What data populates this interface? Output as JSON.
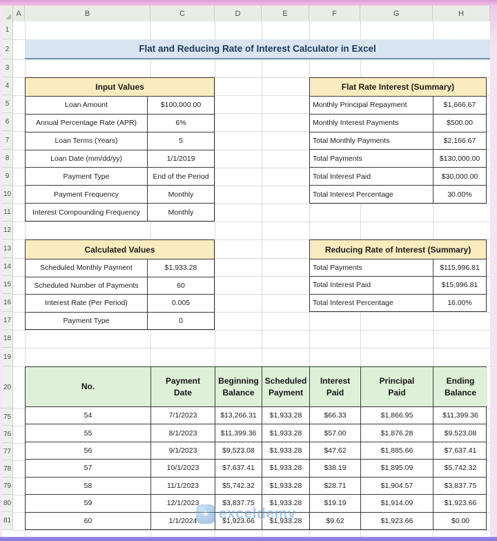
{
  "spreadsheet": {
    "column_headers": [
      "A",
      "B",
      "C",
      "D",
      "E",
      "F",
      "G",
      "H"
    ],
    "row_numbers": [
      "1",
      "2",
      "3",
      "4",
      "5",
      "6",
      "7",
      "8",
      "9",
      "10",
      "11",
      "12",
      "13",
      "14",
      "15",
      "16",
      "17",
      "18",
      "19",
      "20",
      "75",
      "76",
      "77",
      "78",
      "79",
      "80",
      "81"
    ],
    "title": "Flat and Reducing Rate of Interest Calculator in Excel"
  },
  "input_values": {
    "header": "Input Values",
    "rows": [
      {
        "label": "Loan Amount",
        "value": "$100,000.00"
      },
      {
        "label": "Annual Percentage Rate (APR)",
        "value": "6%"
      },
      {
        "label": "Loan Terms (Years)",
        "value": "5"
      },
      {
        "label": "Loan Date (mm/dd/yy)",
        "value": "1/1/2019"
      },
      {
        "label": "Payment Type",
        "value": "End of the Period"
      },
      {
        "label": "Payment Frequency",
        "value": "Monthly"
      },
      {
        "label": "Interest Compounding Frequency",
        "value": "Monthly"
      }
    ]
  },
  "calculated_values": {
    "header": "Calculated Values",
    "rows": [
      {
        "label": "Scheduled Monthly Payment",
        "value": "$1,933.28"
      },
      {
        "label": "Scheduled Number of Payments",
        "value": "60"
      },
      {
        "label": "Interest Rate (Per Period)",
        "value": "0.005"
      },
      {
        "label": "Payment Type",
        "value": "0"
      }
    ]
  },
  "flat_rate_summary": {
    "header": "Flat Rate Interest (Summary)",
    "rows": [
      {
        "label": "Monthly Principal Repayment",
        "value": "$1,666.67"
      },
      {
        "label": "Monthly Interest Payments",
        "value": "$500.00"
      },
      {
        "label": "Total Monthly Payments",
        "value": "$2,166.67"
      },
      {
        "label": "Total Payments",
        "value": "$130,000.00"
      },
      {
        "label": "Total Interest Paid",
        "value": "$30,000.00"
      },
      {
        "label": "Total Interest Percentage",
        "value": "30.00%"
      }
    ]
  },
  "reducing_rate_summary": {
    "header": "Reducing Rate of Interest (Summary)",
    "rows": [
      {
        "label": "Total Payments",
        "value": "$115,996.81"
      },
      {
        "label": "Total Interest Paid",
        "value": "$15,996.81"
      },
      {
        "label": "Total Interest Percentage",
        "value": "16.00%"
      }
    ]
  },
  "amortization": {
    "headers": [
      "No.",
      "Payment Date",
      "Beginning Balance",
      "Scheduled Payment",
      "Interest Paid",
      "Principal Paid",
      "Ending Balance"
    ],
    "rows": [
      [
        "54",
        "7/1/2023",
        "$13,266.31",
        "$1,933.28",
        "$66.33",
        "$1,866.95",
        "$11,399.36"
      ],
      [
        "55",
        "8/1/2023",
        "$11,399.36",
        "$1,933.28",
        "$57.00",
        "$1,876.28",
        "$9,523.08"
      ],
      [
        "56",
        "9/1/2023",
        "$9,523.08",
        "$1,933.28",
        "$47.62",
        "$1,885.66",
        "$7,637.41"
      ],
      [
        "57",
        "10/1/2023",
        "$7,637.41",
        "$1,933.28",
        "$38.19",
        "$1,895.09",
        "$5,742.32"
      ],
      [
        "58",
        "11/1/2023",
        "$5,742.32",
        "$1,933.28",
        "$28.71",
        "$1,904.57",
        "$3,837.75"
      ],
      [
        "59",
        "12/1/2023",
        "$3,837.75",
        "$1,933.28",
        "$19.19",
        "$1,914.09",
        "$1,923.66"
      ],
      [
        "60",
        "1/1/2024",
        "$1,923.66",
        "$1,933.28",
        "$9.62",
        "$1,923.66",
        "$0.00"
      ]
    ]
  },
  "watermark": {
    "text": "exceldemy",
    "logo_icon": "✦"
  },
  "colors": {
    "frame_pink": "#df9cd5",
    "frame_purple": "#8574dd",
    "title_bg": "#d9e5f1",
    "title_text": "#1e3a5f",
    "yellow_header_bg": "#faecbe",
    "green_header_bg": "#dff0d8",
    "watermark_blue": "#5b9bd5"
  }
}
